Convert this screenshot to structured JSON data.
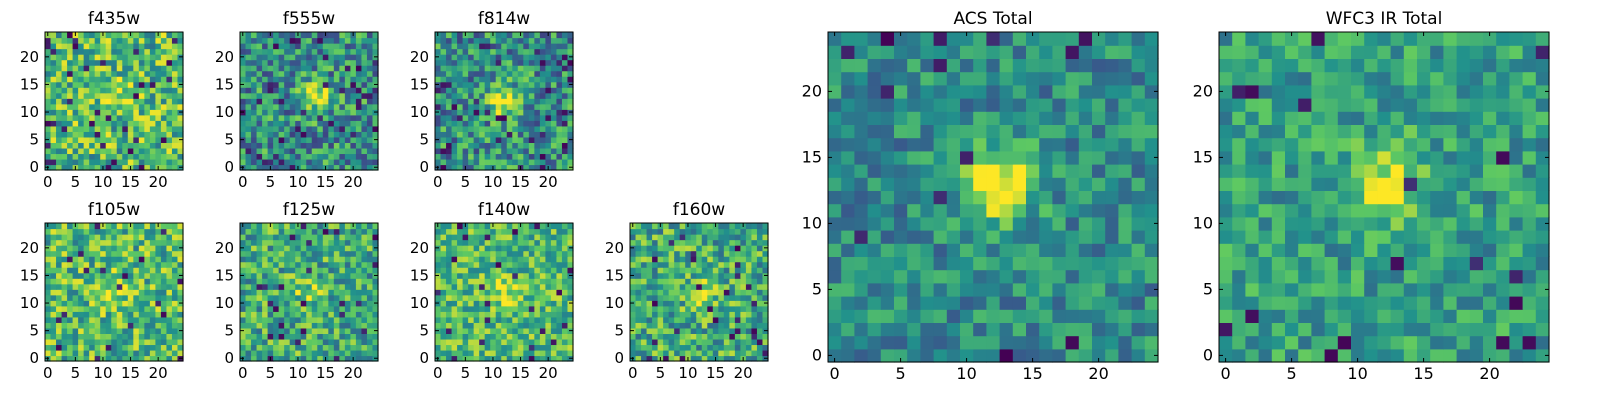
{
  "figure": {
    "colormap": [
      "#440154",
      "#3b528b",
      "#21918c",
      "#5ec962",
      "#fde725"
    ]
  },
  "chart_data": [
    {
      "type": "heatmap",
      "title": "f435w",
      "grid_size": 25,
      "xticks": [
        0,
        5,
        10,
        15,
        20
      ],
      "yticks": [
        0,
        5,
        10,
        15,
        20
      ],
      "xlim": [
        -0.5,
        24.5
      ],
      "ylim": [
        -0.5,
        24.5
      ],
      "pattern": {
        "seed": 11,
        "center": [
          13,
          13
        ],
        "peak": 0.15,
        "noise": 0.3,
        "base": 0.68,
        "dark_fraction": 0.05
      }
    },
    {
      "type": "heatmap",
      "title": "f555w",
      "grid_size": 25,
      "xticks": [
        0,
        5,
        10,
        15,
        20
      ],
      "yticks": [
        0,
        5,
        10,
        15,
        20
      ],
      "xlim": [
        -0.5,
        24.5
      ],
      "ylim": [
        -0.5,
        24.5
      ],
      "pattern": {
        "seed": 23,
        "center": [
          13,
          13
        ],
        "peak": 0.45,
        "noise": 0.3,
        "base": 0.5,
        "dark_fraction": 0.05
      }
    },
    {
      "type": "heatmap",
      "title": "f814w",
      "grid_size": 25,
      "xticks": [
        0,
        5,
        10,
        15,
        20
      ],
      "yticks": [
        0,
        5,
        10,
        15,
        20
      ],
      "xlim": [
        -0.5,
        24.5
      ],
      "ylim": [
        -0.5,
        24.5
      ],
      "pattern": {
        "seed": 37,
        "center": [
          12,
          12
        ],
        "peak": 0.45,
        "noise": 0.3,
        "base": 0.5,
        "dark_fraction": 0.06
      }
    },
    {
      "type": "heatmap",
      "title": "f105w",
      "grid_size": 25,
      "xticks": [
        0,
        5,
        10,
        15,
        20
      ],
      "yticks": [
        0,
        5,
        10,
        15,
        20
      ],
      "xlim": [
        -0.5,
        24.5
      ],
      "ylim": [
        -0.5,
        24.5
      ],
      "pattern": {
        "seed": 41,
        "center": [
          12,
          12
        ],
        "peak": 0.2,
        "noise": 0.28,
        "base": 0.68,
        "dark_fraction": 0.04
      }
    },
    {
      "type": "heatmap",
      "title": "f125w",
      "grid_size": 25,
      "xticks": [
        0,
        5,
        10,
        15,
        20
      ],
      "yticks": [
        0,
        5,
        10,
        15,
        20
      ],
      "xlim": [
        -0.5,
        24.5
      ],
      "ylim": [
        -0.5,
        24.5
      ],
      "pattern": {
        "seed": 53,
        "center": [
          12,
          12
        ],
        "peak": 0.2,
        "noise": 0.28,
        "base": 0.62,
        "dark_fraction": 0.05
      }
    },
    {
      "type": "heatmap",
      "title": "f140w",
      "grid_size": 25,
      "xticks": [
        0,
        5,
        10,
        15,
        20
      ],
      "yticks": [
        0,
        5,
        10,
        15,
        20
      ],
      "xlim": [
        -0.5,
        24.5
      ],
      "ylim": [
        -0.5,
        24.5
      ],
      "pattern": {
        "seed": 67,
        "center": [
          12,
          12
        ],
        "peak": 0.2,
        "noise": 0.24,
        "base": 0.68,
        "dark_fraction": 0.03
      }
    },
    {
      "type": "heatmap",
      "title": "f160w",
      "grid_size": 25,
      "xticks": [
        0,
        5,
        10,
        15,
        20
      ],
      "yticks": [
        0,
        5,
        10,
        15,
        20
      ],
      "xlim": [
        -0.5,
        24.5
      ],
      "ylim": [
        -0.5,
        24.5
      ],
      "pattern": {
        "seed": 79,
        "center": [
          12,
          12
        ],
        "peak": 0.2,
        "noise": 0.28,
        "base": 0.62,
        "dark_fraction": 0.05
      }
    },
    {
      "type": "heatmap",
      "title": "ACS Total",
      "grid_size": 25,
      "xticks": [
        0,
        5,
        10,
        15,
        20
      ],
      "yticks": [
        0,
        5,
        10,
        15,
        20
      ],
      "xlim": [
        -0.5,
        24.5
      ],
      "ylim": [
        -0.5,
        24.5
      ],
      "pattern": {
        "seed": 97,
        "center": [
          12.5,
          13
        ],
        "peak": 0.55,
        "noise": 0.2,
        "base": 0.48,
        "dark_fraction": 0.03
      }
    },
    {
      "type": "heatmap",
      "title": "WFC3 IR Total",
      "grid_size": 25,
      "xticks": [
        0,
        5,
        10,
        15,
        20
      ],
      "yticks": [
        0,
        5,
        10,
        15,
        20
      ],
      "xlim": [
        -0.5,
        24.5
      ],
      "ylim": [
        -0.5,
        24.5
      ],
      "pattern": {
        "seed": 113,
        "center": [
          12,
          13
        ],
        "peak": 0.4,
        "noise": 0.2,
        "base": 0.56,
        "dark_fraction": 0.03
      }
    }
  ]
}
